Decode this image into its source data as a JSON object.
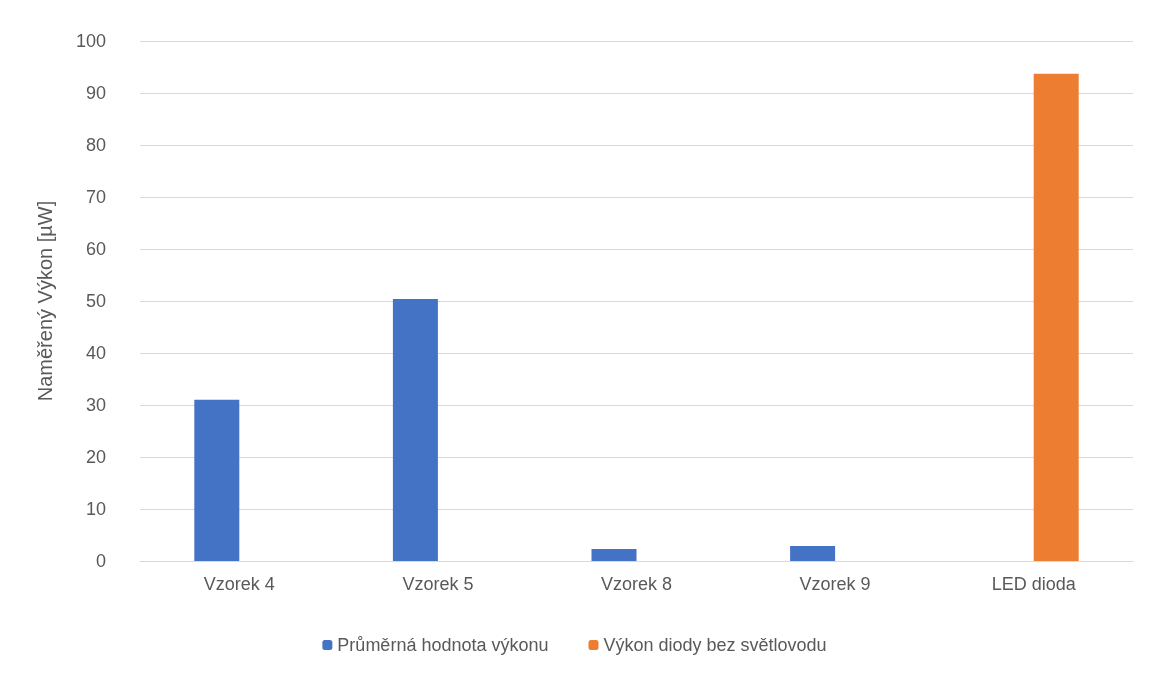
{
  "chart_data": {
    "type": "bar",
    "ylabel": "Naměřený Výkon [µW]",
    "categories": [
      "Vzorek 4",
      "Vzorek 5",
      "Vzorek 8",
      "Vzorek 9",
      "LED dioda"
    ],
    "series": [
      {
        "name": "Průměrná hodnota výkonu",
        "color": "#4472c4",
        "values": [
          31.0,
          50.4,
          2.3,
          2.9,
          null
        ]
      },
      {
        "name": "Výkon diody bez světlovodu",
        "color": "#ed7d31",
        "values": [
          null,
          null,
          null,
          null,
          93.7
        ]
      }
    ],
    "ylim": [
      0,
      100
    ],
    "yticks": [
      0,
      10,
      20,
      30,
      40,
      50,
      60,
      70,
      80,
      90,
      100
    ],
    "grid": "y",
    "legend": "bottom"
  }
}
